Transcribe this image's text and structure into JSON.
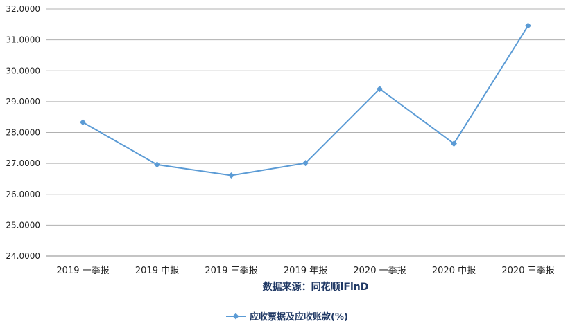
{
  "chart_data": {
    "type": "line",
    "categories": [
      "2019 一季报",
      "2019 中报",
      "2019 三季报",
      "2019 年报",
      "2020 一季报",
      "2020 中报",
      "2020 三季报"
    ],
    "series": [
      {
        "name": "应收票据及应收账款(%)",
        "values": [
          28.33,
          26.96,
          26.61,
          27.01,
          29.41,
          27.64,
          31.46
        ]
      }
    ],
    "y_ticks": [
      "24.0000",
      "25.0000",
      "26.0000",
      "27.0000",
      "28.0000",
      "29.0000",
      "30.0000",
      "31.0000",
      "32.0000"
    ],
    "ylim": [
      24,
      32
    ],
    "xlabel": "数据来源：同花顺iFinD",
    "grid": true,
    "legend_position": "bottom",
    "series_color": "#5b9bd5",
    "grid_color": "#b0b0b0"
  }
}
